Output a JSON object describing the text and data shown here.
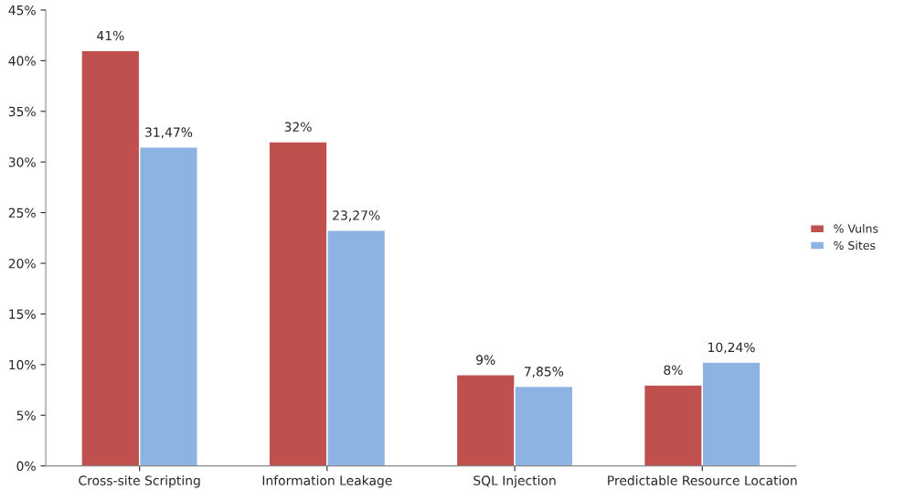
{
  "chart_data": {
    "type": "bar",
    "categories": [
      "Cross-site Scripting",
      "Information Leakage",
      "SQL Injection",
      "Predictable Resource Location"
    ],
    "series": [
      {
        "name": "% Vulns",
        "color": "#c0504d",
        "values": [
          41,
          32,
          9,
          8
        ],
        "value_labels": [
          "41%",
          "32%",
          "9%",
          "8%"
        ]
      },
      {
        "name": "% Sites",
        "color": "#8db3e2",
        "values": [
          31.47,
          23.27,
          7.85,
          10.24
        ],
        "value_labels": [
          "31,47%",
          "23,27%",
          "7,85%",
          "10,24%"
        ]
      }
    ],
    "ylim": [
      0,
      45
    ],
    "yticks": [
      {
        "value": 0,
        "label": "0%"
      },
      {
        "value": 5,
        "label": "5%"
      },
      {
        "value": 10,
        "label": "10%"
      },
      {
        "value": 15,
        "label": "15%"
      },
      {
        "value": 20,
        "label": "20%"
      },
      {
        "value": 25,
        "label": "25%"
      },
      {
        "value": 30,
        "label": "30%"
      },
      {
        "value": 35,
        "label": "35%"
      },
      {
        "value": 40,
        "label": "40%"
      },
      {
        "value": 45,
        "label": "45%"
      }
    ],
    "grid": false,
    "legend": "right"
  }
}
